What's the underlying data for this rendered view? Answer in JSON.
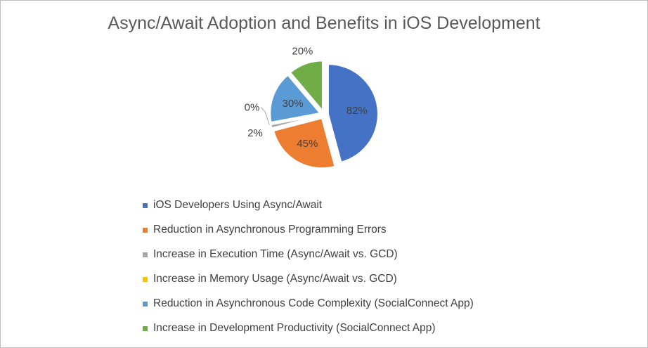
{
  "chart_data": {
    "type": "pie",
    "title": "Async/Await Adoption and Benefits in iOS Development",
    "categories": [
      "iOS Developers Using Async/Await",
      "Reduction in Asynchronous Programming Errors",
      "Increase in Execution Time (Async/Await vs. GCD)",
      "Increase in Memory Usage (Async/Await vs. GCD)",
      "Reduction in Asynchronous Code Complexity (SocialConnect App)",
      "Increase in Development Productivity (SocialConnect App)"
    ],
    "values": [
      82,
      45,
      2,
      0,
      30,
      20
    ],
    "labels": [
      "82%",
      "45%",
      "2%",
      "0%",
      "30%",
      "20%"
    ],
    "colors": [
      "#4472c4",
      "#ed7d31",
      "#a5a5a5",
      "#ffc000",
      "#5b9bd5",
      "#70ad47"
    ],
    "legend": "bottom",
    "exploded": true
  }
}
